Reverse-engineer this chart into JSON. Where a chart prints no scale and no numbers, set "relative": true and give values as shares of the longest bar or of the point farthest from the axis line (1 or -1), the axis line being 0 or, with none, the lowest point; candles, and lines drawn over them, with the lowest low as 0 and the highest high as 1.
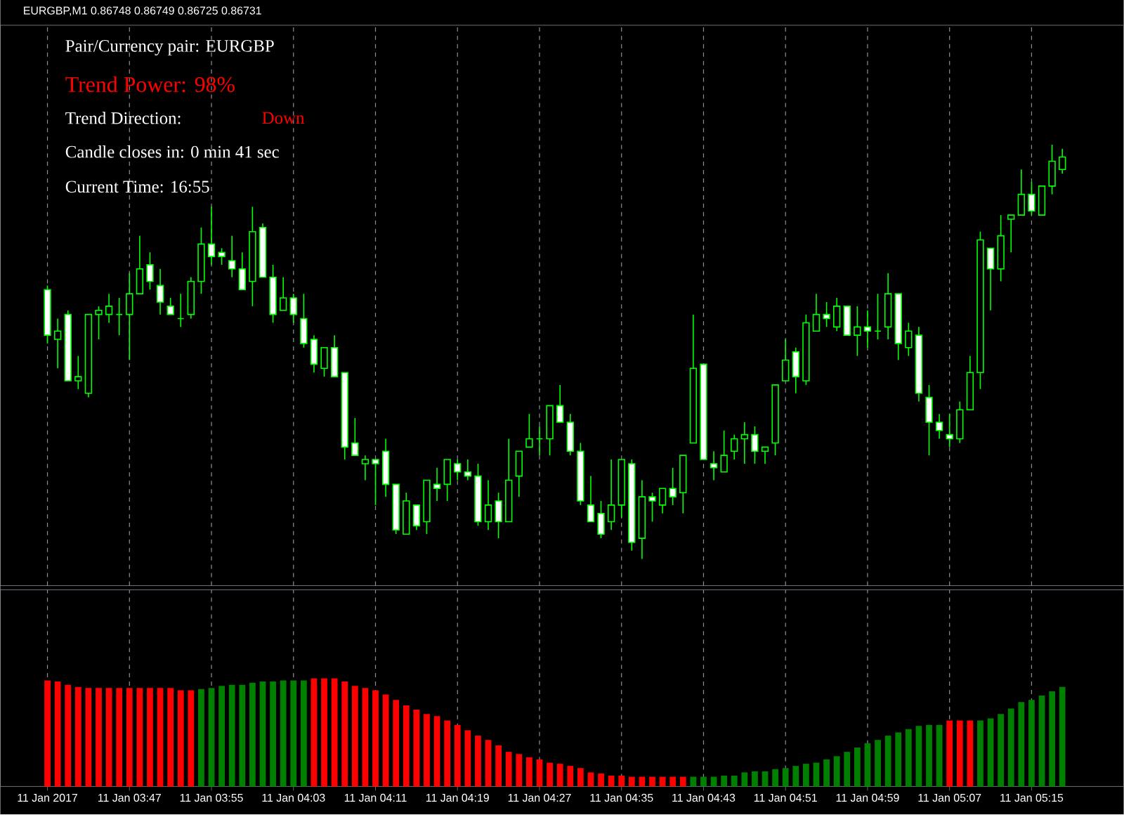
{
  "chart_data": [
    {
      "type": "candlestick",
      "title": "EURGBP,M1  0.86748 0.86749 0.86725 0.86731",
      "annotations": [
        "Pair/Currency pair: EURGBP",
        "Trend Power: 98%",
        "Trend Direction:",
        "Down",
        "Candle closes in: 0 min 41 sec",
        "Current Time: 16:55"
      ],
      "relative": true,
      "color": "#00ff00",
      "grid": "x",
      "tick_labels": false,
      "categories": [
        null,
        null,
        null,
        null,
        null,
        null,
        null,
        null,
        null,
        null,
        null,
        null,
        null,
        null,
        null,
        null,
        null,
        null,
        null,
        null,
        null,
        null,
        null,
        null,
        null,
        null,
        null,
        null,
        null,
        null,
        null,
        null,
        null,
        null,
        null,
        null,
        null,
        null,
        null,
        null,
        null,
        null,
        null,
        null,
        null,
        null,
        null,
        null,
        null,
        null,
        null,
        null,
        null,
        null,
        null,
        null,
        null,
        null,
        null,
        null,
        null,
        null,
        null,
        null,
        null,
        null,
        null,
        null,
        null,
        null,
        null,
        null,
        null,
        null,
        null,
        null,
        null,
        null,
        null,
        null,
        null,
        null,
        null,
        null,
        null,
        null,
        null,
        null,
        null,
        null,
        null,
        null,
        null,
        null,
        null,
        null,
        null,
        null,
        null,
        null
      ],
      "ohlc": [
        [
          0.65,
          0.66,
          0.52,
          0.54
        ],
        [
          0.53,
          0.58,
          0.46,
          0.55
        ],
        [
          0.59,
          0.6,
          0.43,
          0.43
        ],
        [
          0.43,
          0.49,
          0.41,
          0.44
        ],
        [
          0.4,
          0.59,
          0.39,
          0.59
        ],
        [
          0.59,
          0.61,
          0.53,
          0.6
        ],
        [
          0.59,
          0.64,
          0.57,
          0.61
        ],
        [
          0.59,
          0.63,
          0.54,
          0.59
        ],
        [
          0.59,
          0.69,
          0.48,
          0.64
        ],
        [
          0.64,
          0.78,
          0.64,
          0.7
        ],
        [
          0.71,
          0.74,
          0.65,
          0.67
        ],
        [
          0.66,
          0.7,
          0.59,
          0.62
        ],
        [
          0.61,
          0.63,
          0.59,
          0.59
        ],
        [
          0.58,
          0.64,
          0.56,
          0.58
        ],
        [
          0.59,
          0.68,
          0.58,
          0.67
        ],
        [
          0.67,
          0.8,
          0.64,
          0.76
        ],
        [
          0.76,
          0.85,
          0.71,
          0.73
        ],
        [
          0.74,
          0.75,
          0.71,
          0.73
        ],
        [
          0.72,
          0.78,
          0.68,
          0.7
        ],
        [
          0.7,
          0.74,
          0.65,
          0.65
        ],
        [
          0.67,
          0.85,
          0.61,
          0.79
        ],
        [
          0.8,
          0.81,
          0.68,
          0.68
        ],
        [
          0.68,
          0.71,
          0.57,
          0.59
        ],
        [
          0.6,
          0.68,
          0.6,
          0.63
        ],
        [
          0.63,
          0.64,
          0.57,
          0.59
        ],
        [
          0.58,
          0.64,
          0.51,
          0.52
        ],
        [
          0.53,
          0.54,
          0.45,
          0.47
        ],
        [
          0.46,
          0.51,
          0.44,
          0.51
        ],
        [
          0.51,
          0.54,
          0.44,
          0.44
        ],
        [
          0.45,
          0.45,
          0.24,
          0.27
        ],
        [
          0.28,
          0.34,
          0.25,
          0.25
        ],
        [
          0.23,
          0.25,
          0.19,
          0.24
        ],
        [
          0.24,
          0.24,
          0.13,
          0.23
        ],
        [
          0.26,
          0.29,
          0.15,
          0.18
        ],
        [
          0.18,
          0.18,
          0.06,
          0.07
        ],
        [
          0.06,
          0.16,
          0.06,
          0.14
        ],
        [
          0.13,
          0.13,
          0.07,
          0.08
        ],
        [
          0.09,
          0.19,
          0.06,
          0.19
        ],
        [
          0.18,
          0.22,
          0.14,
          0.17
        ],
        [
          0.18,
          0.24,
          0.14,
          0.24
        ],
        [
          0.23,
          0.24,
          0.19,
          0.21
        ],
        [
          0.21,
          0.24,
          0.19,
          0.2
        ],
        [
          0.2,
          0.23,
          0.08,
          0.09
        ],
        [
          0.09,
          0.19,
          0.07,
          0.13
        ],
        [
          0.14,
          0.16,
          0.05,
          0.09
        ],
        [
          0.09,
          0.29,
          0.09,
          0.19
        ],
        [
          0.2,
          0.26,
          0.15,
          0.26
        ],
        [
          0.27,
          0.35,
          0.27,
          0.29
        ],
        [
          0.29,
          0.32,
          0.25,
          0.29
        ],
        [
          0.29,
          0.37,
          0.25,
          0.37
        ],
        [
          0.37,
          0.42,
          0.33,
          0.33
        ],
        [
          0.33,
          0.35,
          0.25,
          0.26
        ],
        [
          0.26,
          0.28,
          0.13,
          0.14
        ],
        [
          0.13,
          0.2,
          0.09,
          0.09
        ],
        [
          0.11,
          0.14,
          0.05,
          0.06
        ],
        [
          0.09,
          0.24,
          0.07,
          0.13
        ],
        [
          0.13,
          0.24,
          0.1,
          0.24
        ],
        [
          0.23,
          0.24,
          0.02,
          0.04
        ],
        [
          0.05,
          0.19,
          0,
          0.15
        ],
        [
          0.15,
          0.16,
          0.09,
          0.14
        ],
        [
          0.13,
          0.17,
          0.11,
          0.17
        ],
        [
          0.17,
          0.22,
          0.13,
          0.15
        ],
        [
          0.16,
          0.25,
          0.11,
          0.25
        ],
        [
          0.28,
          0.59,
          0.28,
          0.46
        ],
        [
          0.47,
          0.47,
          0.24,
          0.24
        ],
        [
          0.23,
          0.26,
          0.19,
          0.22
        ],
        [
          0.21,
          0.31,
          0.21,
          0.25
        ],
        [
          0.26,
          0.3,
          0.24,
          0.29
        ],
        [
          0.29,
          0.33,
          0.23,
          0.3
        ],
        [
          0.3,
          0.32,
          0.23,
          0.26
        ],
        [
          0.26,
          0.27,
          0.23,
          0.27
        ],
        [
          0.28,
          0.42,
          0.25,
          0.42
        ],
        [
          0.43,
          0.53,
          0.43,
          0.48
        ],
        [
          0.5,
          0.51,
          0.4,
          0.44
        ],
        [
          0.43,
          0.59,
          0.42,
          0.57
        ],
        [
          0.55,
          0.64,
          0.55,
          0.59
        ],
        [
          0.59,
          0.62,
          0.56,
          0.58
        ],
        [
          0.56,
          0.63,
          0.55,
          0.61
        ],
        [
          0.61,
          0.61,
          0.54,
          0.54
        ],
        [
          0.54,
          0.61,
          0.49,
          0.56
        ],
        [
          0.56,
          0.6,
          0.51,
          0.55
        ],
        [
          0.55,
          0.64,
          0.53,
          0.55
        ],
        [
          0.56,
          0.69,
          0.53,
          0.64
        ],
        [
          0.64,
          0.64,
          0.48,
          0.52
        ],
        [
          0.51,
          0.57,
          0.49,
          0.55
        ],
        [
          0.54,
          0.56,
          0.38,
          0.4
        ],
        [
          0.39,
          0.42,
          0.25,
          0.33
        ],
        [
          0.33,
          0.35,
          0.29,
          0.31
        ],
        [
          0.3,
          0.35,
          0.27,
          0.29
        ],
        [
          0.29,
          0.38,
          0.28,
          0.36
        ],
        [
          0.36,
          0.49,
          0.36,
          0.45
        ],
        [
          0.45,
          0.79,
          0.41,
          0.77
        ],
        [
          0.75,
          0.75,
          0.6,
          0.7
        ],
        [
          0.7,
          0.83,
          0.67,
          0.78
        ],
        [
          0.82,
          0.83,
          0.74,
          0.83
        ],
        [
          0.83,
          0.94,
          0.83,
          0.88
        ],
        [
          0.88,
          0.91,
          0.83,
          0.84
        ],
        [
          0.83,
          0.9,
          0.83,
          0.9
        ],
        [
          0.9,
          1,
          0.88,
          0.96
        ],
        [
          0.94,
          0.99,
          0.93,
          0.97
        ]
      ]
    },
    {
      "type": "bar",
      "relative": true,
      "grid": "x",
      "tick_labels": "x",
      "categories": [
        "11 Jan 2017",
        null,
        null,
        null,
        null,
        null,
        null,
        null,
        "11 Jan 03:47",
        null,
        null,
        null,
        null,
        null,
        null,
        null,
        "11 Jan 03:55",
        null,
        null,
        null,
        null,
        null,
        null,
        null,
        "11 Jan 04:03",
        null,
        null,
        null,
        null,
        null,
        null,
        null,
        "11 Jan 04:11",
        null,
        null,
        null,
        null,
        null,
        null,
        null,
        "11 Jan 04:19",
        null,
        null,
        null,
        null,
        null,
        null,
        null,
        "11 Jan 04:27",
        null,
        null,
        null,
        null,
        null,
        null,
        null,
        "11 Jan 04:35",
        null,
        null,
        null,
        null,
        null,
        null,
        null,
        "11 Jan 04:43",
        null,
        null,
        null,
        null,
        null,
        null,
        null,
        "11 Jan 04:51",
        null,
        null,
        null,
        null,
        null,
        null,
        null,
        "11 Jan 04:59",
        null,
        null,
        null,
        null,
        null,
        null,
        null,
        "11 Jan 05:07",
        null,
        null,
        null,
        null,
        null,
        null,
        null,
        "11 Jan 05:15",
        null,
        null,
        null
      ],
      "values": [
        0.98,
        0.97,
        0.94,
        0.92,
        0.91,
        0.91,
        0.91,
        0.91,
        0.91,
        0.91,
        0.91,
        0.91,
        0.91,
        0.89,
        0.89,
        0.9,
        0.91,
        0.93,
        0.94,
        0.94,
        0.96,
        0.97,
        0.97,
        0.98,
        0.98,
        0.98,
        1,
        1,
        1,
        0.97,
        0.93,
        0.91,
        0.89,
        0.85,
        0.8,
        0.75,
        0.71,
        0.67,
        0.65,
        0.61,
        0.57,
        0.52,
        0.47,
        0.43,
        0.38,
        0.32,
        0.3,
        0.27,
        0.25,
        0.22,
        0.21,
        0.19,
        0.17,
        0.13,
        0.12,
        0.1,
        0.1,
        0.09,
        0.09,
        0.09,
        0.09,
        0.09,
        0.09,
        0.09,
        0.09,
        0.09,
        0.1,
        0.1,
        0.13,
        0.14,
        0.14,
        0.16,
        0.17,
        0.19,
        0.21,
        0.22,
        0.25,
        0.28,
        0.32,
        0.36,
        0.4,
        0.43,
        0.47,
        0.5,
        0.53,
        0.56,
        0.57,
        0.57,
        0.61,
        0.61,
        0.61,
        0.61,
        0.63,
        0.67,
        0.72,
        0.78,
        0.8,
        0.84,
        0.88,
        0.92
      ],
      "colors": [
        "#ff0000",
        "#ff0000",
        "#ff0000",
        "#ff0000",
        "#ff0000",
        "#ff0000",
        "#ff0000",
        "#ff0000",
        "#ff0000",
        "#ff0000",
        "#ff0000",
        "#ff0000",
        "#ff0000",
        "#ff0000",
        "#ff0000",
        "#008000",
        "#008000",
        "#008000",
        "#008000",
        "#008000",
        "#008000",
        "#008000",
        "#008000",
        "#008000",
        "#008000",
        "#008000",
        "#ff0000",
        "#ff0000",
        "#ff0000",
        "#ff0000",
        "#ff0000",
        "#ff0000",
        "#ff0000",
        "#ff0000",
        "#ff0000",
        "#ff0000",
        "#ff0000",
        "#ff0000",
        "#ff0000",
        "#ff0000",
        "#ff0000",
        "#ff0000",
        "#ff0000",
        "#ff0000",
        "#ff0000",
        "#ff0000",
        "#ff0000",
        "#ff0000",
        "#ff0000",
        "#ff0000",
        "#ff0000",
        "#ff0000",
        "#ff0000",
        "#ff0000",
        "#ff0000",
        "#ff0000",
        "#ff0000",
        "#ff0000",
        "#ff0000",
        "#ff0000",
        "#ff0000",
        "#ff0000",
        "#ff0000",
        "#008000",
        "#008000",
        "#008000",
        "#008000",
        "#008000",
        "#008000",
        "#008000",
        "#008000",
        "#008000",
        "#008000",
        "#008000",
        "#008000",
        "#008000",
        "#008000",
        "#008000",
        "#008000",
        "#008000",
        "#008000",
        "#008000",
        "#008000",
        "#008000",
        "#008000",
        "#008000",
        "#008000",
        "#008000",
        "#ff0000",
        "#ff0000",
        "#ff0000",
        "#008000",
        "#008000",
        "#008000",
        "#008000",
        "#008000",
        "#008000",
        "#008000",
        "#008000",
        "#008000"
      ]
    }
  ]
}
